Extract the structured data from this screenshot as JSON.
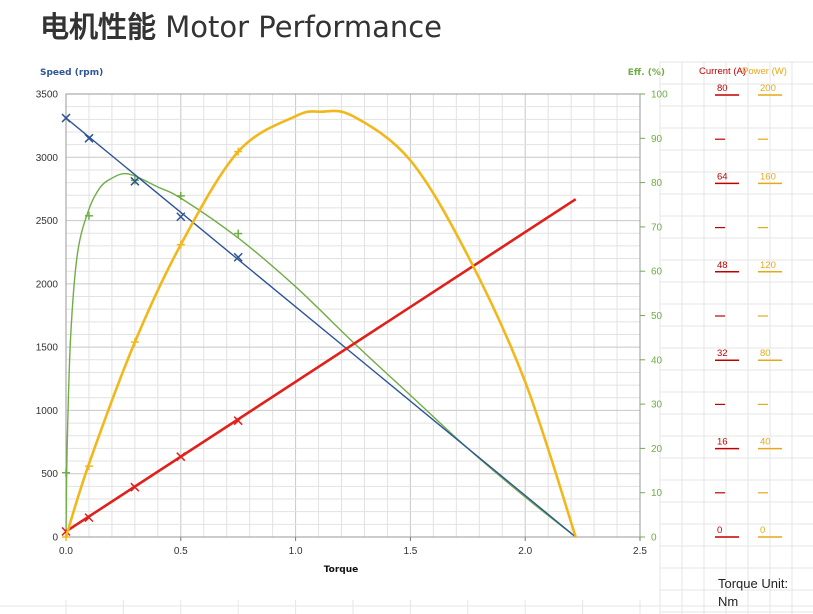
{
  "title": {
    "cn": "电机性能",
    "en": "Motor Performance"
  },
  "chart_data": {
    "type": "line",
    "title": "电机性能 Motor Performance",
    "xlabel": "Torque",
    "xlim": [
      0,
      2.5
    ],
    "x_ticks": [
      "0.0",
      "0.5",
      "1.0",
      "1.5",
      "2.0",
      "2.5"
    ],
    "grid": true,
    "axes": {
      "speed": {
        "label": "Speed (rpm)",
        "range": [
          0,
          3500
        ],
        "ticks": [
          0,
          500,
          1000,
          1500,
          2000,
          2500,
          3000,
          3500
        ],
        "side": "left",
        "color": "#2F5597"
      },
      "efficiency": {
        "label": "Eff. (%)",
        "range": [
          0,
          100
        ],
        "ticks": [
          0,
          10,
          20,
          30,
          40,
          50,
          60,
          70,
          80,
          90,
          100
        ],
        "side": "right",
        "color": "#70AD47"
      },
      "current": {
        "label": "Current (A)",
        "range": [
          0,
          80
        ],
        "ticks": [
          0,
          16,
          32,
          48,
          64,
          80
        ],
        "side": "right",
        "color": "#C00000"
      },
      "power": {
        "label": "Power (W)",
        "range": [
          0,
          200
        ],
        "ticks": [
          0,
          40,
          80,
          120,
          160,
          200
        ],
        "side": "right",
        "color": "#E6A817"
      }
    },
    "series": [
      {
        "axis": "speed",
        "color": "#2F5597",
        "marker": "x",
        "x": [
          0,
          2.22
        ],
        "y": [
          3310,
          0
        ],
        "points": [
          [
            0,
            3310
          ],
          [
            0.1,
            3150
          ],
          [
            0.3,
            2810
          ],
          [
            0.5,
            2530
          ],
          [
            0.75,
            2210
          ]
        ]
      },
      {
        "axis": "efficiency",
        "color": "#70AD47",
        "marker": "+",
        "x": [
          0,
          0.005,
          0.02,
          0.05,
          0.1,
          0.15,
          0.2,
          0.25,
          0.3,
          0.4,
          0.5,
          0.75,
          1.0,
          1.25,
          1.5,
          1.75,
          2.0,
          2.22
        ],
        "y": [
          0,
          20,
          45,
          64,
          74,
          79,
          81,
          82,
          81.5,
          79,
          76.5,
          67.5,
          56.5,
          44,
          32,
          20,
          9,
          0
        ],
        "points": [
          [
            0,
            14.5
          ],
          [
            0.1,
            72.5
          ],
          [
            0.3,
            80.5
          ],
          [
            0.5,
            77
          ],
          [
            0.75,
            68.5
          ]
        ]
      },
      {
        "axis": "power",
        "color": "#F2B81B",
        "marker": "+",
        "x": [
          0,
          0.1,
          0.3,
          0.5,
          0.75,
          1.0,
          1.11,
          1.25,
          1.5,
          1.75,
          2.0,
          2.22
        ],
        "y": [
          0,
          33,
          88,
          132,
          174,
          190,
          192,
          190,
          170,
          127,
          70,
          0
        ],
        "points": [
          [
            0,
            0
          ],
          [
            0.1,
            32
          ],
          [
            0.3,
            88
          ],
          [
            0.5,
            132
          ],
          [
            0.75,
            174
          ]
        ]
      },
      {
        "axis": "current",
        "color": "#E0201B",
        "marker": "x",
        "x": [
          0,
          2.22
        ],
        "y": [
          1,
          61
        ],
        "points": [
          [
            0,
            1
          ],
          [
            0.1,
            3.5
          ],
          [
            0.3,
            9
          ],
          [
            0.5,
            14.5
          ],
          [
            0.75,
            21
          ]
        ]
      }
    ],
    "torque_unit_label": "Torque Unit:",
    "torque_unit": "Nm"
  }
}
